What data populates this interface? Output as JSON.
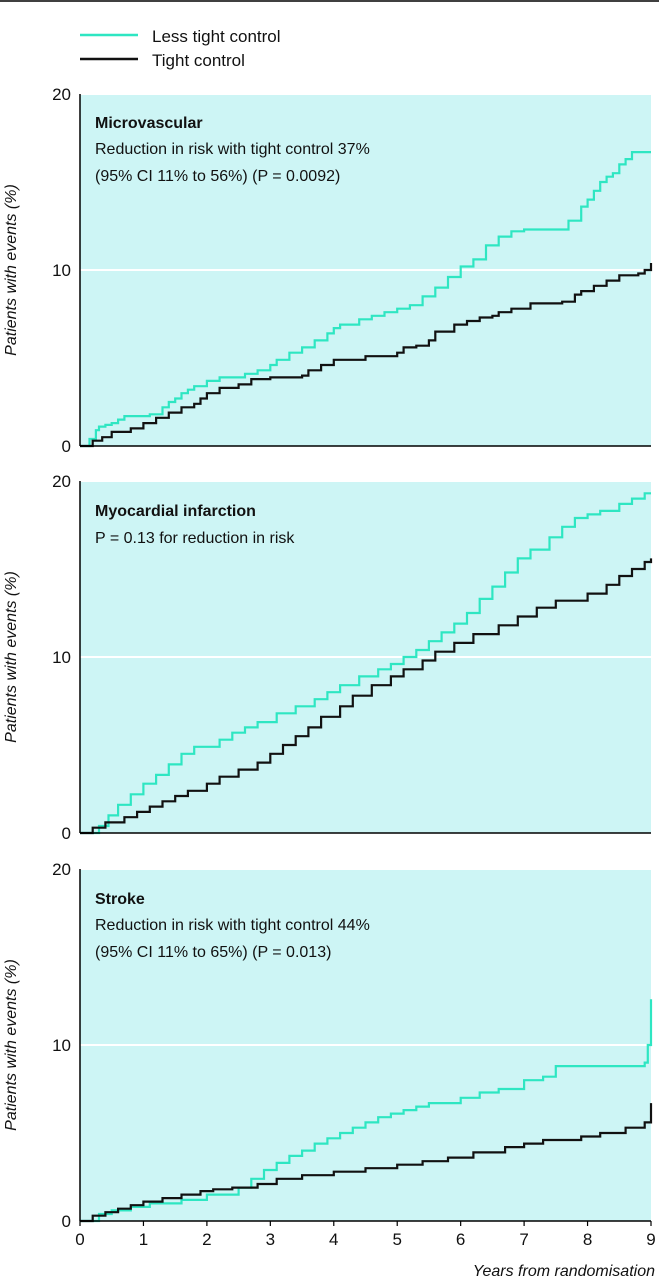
{
  "legend": [
    {
      "label": "Less tight control",
      "color": "#2ee6c2"
    },
    {
      "label": "Tight control",
      "color": "#111111"
    }
  ],
  "colors": {
    "panel_bg": "#cdf5f5",
    "grid": "#ffffff",
    "axis": "#000000"
  },
  "xlabel": "Years from randomisation",
  "chart_data": [
    {
      "type": "line",
      "title": "Microvascular",
      "annotations": [
        "Reduction in risk with tight control 37%",
        "(95% CI 11% to 56%) (P = 0.0092)"
      ],
      "xlabel": "Years from randomisation",
      "ylabel": "Patients with events (%)",
      "xlim": [
        0,
        9
      ],
      "ylim": [
        0,
        20
      ],
      "xticks": [
        0,
        1,
        2,
        3,
        4,
        5,
        6,
        7,
        8,
        9
      ],
      "yticks": [
        0,
        10,
        20
      ],
      "grid": "horizontal",
      "legend_position": "top-left",
      "series": [
        {
          "name": "Less tight control",
          "color": "#2ee6c2",
          "x": [
            0,
            0.15,
            0.25,
            0.3,
            0.4,
            0.5,
            0.6,
            0.7,
            1.1,
            1.3,
            1.4,
            1.5,
            1.6,
            1.7,
            1.8,
            2.0,
            2.2,
            2.6,
            2.8,
            3.0,
            3.1,
            3.3,
            3.5,
            3.7,
            3.9,
            4.0,
            4.1,
            4.4,
            4.6,
            4.8,
            5.0,
            5.2,
            5.4,
            5.6,
            5.8,
            6.0,
            6.2,
            6.4,
            6.6,
            6.8,
            7.0,
            7.3,
            7.6,
            7.7,
            7.9,
            8.0,
            8.1,
            8.2,
            8.3,
            8.4,
            8.5,
            8.6,
            8.7,
            9.0
          ],
          "y": [
            0,
            0.4,
            0.9,
            1.1,
            1.2,
            1.3,
            1.5,
            1.7,
            1.8,
            2.2,
            2.5,
            2.7,
            3.0,
            3.2,
            3.4,
            3.7,
            3.9,
            4.1,
            4.3,
            4.6,
            4.9,
            5.3,
            5.6,
            6.0,
            6.4,
            6.7,
            6.9,
            7.2,
            7.4,
            7.6,
            7.8,
            8.0,
            8.5,
            9.0,
            9.6,
            10.2,
            10.6,
            11.4,
            11.9,
            12.2,
            12.3,
            12.3,
            12.3,
            12.8,
            13.6,
            14.0,
            14.5,
            15.0,
            15.3,
            15.5,
            16.0,
            16.3,
            16.7,
            16.7
          ]
        },
        {
          "name": "Tight control",
          "color": "#111111",
          "x": [
            0,
            0.2,
            0.35,
            0.5,
            0.8,
            1.0,
            1.2,
            1.4,
            1.6,
            1.8,
            1.9,
            2.0,
            2.2,
            2.5,
            2.7,
            3.0,
            3.5,
            3.6,
            3.8,
            4.0,
            4.5,
            5.0,
            5.1,
            5.3,
            5.5,
            5.6,
            5.9,
            6.1,
            6.3,
            6.5,
            6.6,
            6.8,
            7.1,
            7.6,
            7.8,
            7.9,
            8.1,
            8.3,
            8.5,
            8.8,
            8.9,
            9.0
          ],
          "y": [
            0,
            0.3,
            0.5,
            0.8,
            1.0,
            1.3,
            1.6,
            1.9,
            2.2,
            2.4,
            2.7,
            3.0,
            3.3,
            3.5,
            3.8,
            3.9,
            4.0,
            4.3,
            4.6,
            4.9,
            5.1,
            5.3,
            5.6,
            5.7,
            6.0,
            6.5,
            6.9,
            7.1,
            7.3,
            7.4,
            7.6,
            7.8,
            8.1,
            8.2,
            8.6,
            8.8,
            9.1,
            9.4,
            9.7,
            9.8,
            10.0,
            10.4
          ]
        }
      ]
    },
    {
      "type": "line",
      "title": "Myocardial infarction",
      "annotations": [
        "P = 0.13 for reduction in risk"
      ],
      "xlabel": "Years from randomisation",
      "ylabel": "Patients with events (%)",
      "xlim": [
        0,
        9
      ],
      "ylim": [
        0,
        20
      ],
      "xticks": [
        0,
        1,
        2,
        3,
        4,
        5,
        6,
        7,
        8,
        9
      ],
      "yticks": [
        0,
        10,
        20
      ],
      "grid": "horizontal",
      "series": [
        {
          "name": "Less tight control",
          "color": "#2ee6c2",
          "x": [
            0,
            0.3,
            0.45,
            0.6,
            0.8,
            1.0,
            1.2,
            1.4,
            1.6,
            1.8,
            2.2,
            2.4,
            2.6,
            2.8,
            3.1,
            3.4,
            3.7,
            3.9,
            4.1,
            4.4,
            4.7,
            4.9,
            5.1,
            5.3,
            5.5,
            5.7,
            5.9,
            6.1,
            6.3,
            6.5,
            6.7,
            6.9,
            7.1,
            7.4,
            7.6,
            7.8,
            8.0,
            8.2,
            8.5,
            8.7,
            8.9,
            9.0
          ],
          "y": [
            0,
            0.4,
            1.0,
            1.6,
            2.2,
            2.8,
            3.3,
            3.9,
            4.5,
            4.9,
            5.3,
            5.7,
            6.0,
            6.3,
            6.8,
            7.2,
            7.6,
            8.0,
            8.4,
            8.9,
            9.3,
            9.6,
            10.0,
            10.4,
            10.9,
            11.4,
            11.9,
            12.5,
            13.3,
            14.0,
            14.8,
            15.6,
            16.1,
            16.8,
            17.4,
            17.9,
            18.1,
            18.3,
            18.7,
            19.0,
            19.3,
            19.3
          ]
        },
        {
          "name": "Tight control",
          "color": "#111111",
          "x": [
            0,
            0.2,
            0.4,
            0.7,
            0.9,
            1.1,
            1.3,
            1.5,
            1.7,
            2.0,
            2.2,
            2.5,
            2.8,
            3.0,
            3.2,
            3.4,
            3.6,
            3.8,
            4.1,
            4.3,
            4.6,
            4.9,
            5.1,
            5.4,
            5.6,
            5.9,
            6.2,
            6.6,
            6.9,
            7.2,
            7.5,
            8.0,
            8.3,
            8.5,
            8.7,
            8.9,
            9.0
          ],
          "y": [
            0,
            0.3,
            0.6,
            0.9,
            1.2,
            1.5,
            1.8,
            2.1,
            2.4,
            2.8,
            3.2,
            3.6,
            4.0,
            4.5,
            5.0,
            5.5,
            6.0,
            6.6,
            7.2,
            7.8,
            8.4,
            8.9,
            9.3,
            9.8,
            10.3,
            10.8,
            11.3,
            11.8,
            12.3,
            12.8,
            13.2,
            13.6,
            14.1,
            14.6,
            15.0,
            15.4,
            15.6
          ]
        }
      ]
    },
    {
      "type": "line",
      "title": "Stroke",
      "annotations": [
        "Reduction in risk with tight control 44%",
        "(95% CI 11% to 65%) (P = 0.013)"
      ],
      "xlabel": "Years from randomisation",
      "ylabel": "Patients with events (%)",
      "xlim": [
        0,
        9
      ],
      "ylim": [
        0,
        20
      ],
      "xticks": [
        0,
        1,
        2,
        3,
        4,
        5,
        6,
        7,
        8,
        9
      ],
      "yticks": [
        0,
        10,
        20
      ],
      "grid": "horizontal",
      "series": [
        {
          "name": "Less tight control",
          "color": "#2ee6c2",
          "x": [
            0,
            0.3,
            0.5,
            0.8,
            1.1,
            1.6,
            2.0,
            2.5,
            2.7,
            2.9,
            3.1,
            3.3,
            3.5,
            3.7,
            3.9,
            4.1,
            4.3,
            4.5,
            4.7,
            4.9,
            5.1,
            5.3,
            5.5,
            6.0,
            6.3,
            6.6,
            7.0,
            7.3,
            7.5,
            8.9,
            8.95,
            9.0
          ],
          "y": [
            0,
            0.4,
            0.6,
            0.8,
            1.0,
            1.2,
            1.5,
            1.9,
            2.4,
            2.9,
            3.3,
            3.7,
            4.0,
            4.4,
            4.7,
            5.0,
            5.3,
            5.6,
            5.9,
            6.1,
            6.3,
            6.5,
            6.7,
            7.0,
            7.3,
            7.5,
            8.0,
            8.2,
            8.8,
            9.0,
            10.0,
            12.6
          ]
        },
        {
          "name": "Tight control",
          "color": "#111111",
          "x": [
            0,
            0.2,
            0.4,
            0.6,
            0.8,
            1.0,
            1.3,
            1.6,
            1.9,
            2.1,
            2.4,
            2.8,
            3.1,
            3.5,
            4.0,
            4.5,
            5.0,
            5.4,
            5.8,
            6.2,
            6.7,
            7.0,
            7.3,
            7.9,
            8.2,
            8.6,
            8.9,
            9.0
          ],
          "y": [
            0,
            0.3,
            0.5,
            0.7,
            0.9,
            1.1,
            1.3,
            1.5,
            1.7,
            1.8,
            1.9,
            2.1,
            2.4,
            2.6,
            2.8,
            3.0,
            3.2,
            3.4,
            3.6,
            3.9,
            4.2,
            4.4,
            4.6,
            4.8,
            5.0,
            5.3,
            5.6,
            6.7
          ]
        }
      ]
    }
  ]
}
